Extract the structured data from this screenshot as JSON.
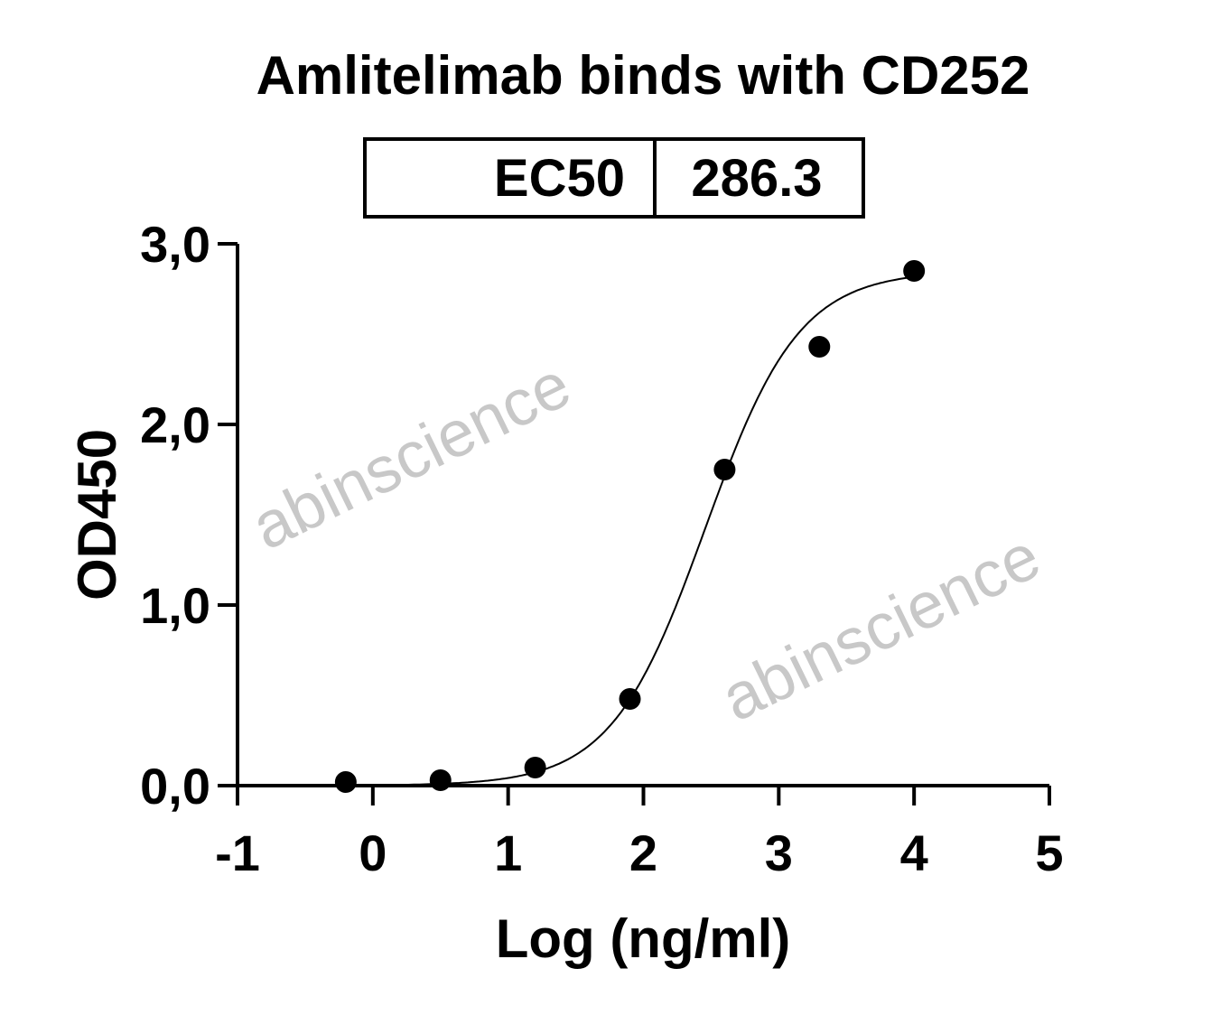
{
  "chart_data": {
    "type": "scatter",
    "title": "Amlitelimab binds with CD252",
    "xlabel": "Log (ng/ml)",
    "ylabel": "OD450",
    "xlim": [
      -1,
      5
    ],
    "ylim": [
      0,
      3
    ],
    "x_ticks": [
      "-1",
      "0",
      "1",
      "2",
      "3",
      "4",
      "5"
    ],
    "y_ticks": [
      "0,0",
      "1,0",
      "2,0",
      "3,0"
    ],
    "grid": false,
    "legend": null,
    "ec50_table": {
      "label": "EC50",
      "value": "286.3"
    },
    "points": [
      {
        "x": -0.2,
        "y": 0.02
      },
      {
        "x": 0.5,
        "y": 0.03
      },
      {
        "x": 1.2,
        "y": 0.1
      },
      {
        "x": 1.9,
        "y": 0.48
      },
      {
        "x": 2.6,
        "y": 1.75
      },
      {
        "x": 3.3,
        "y": 2.43
      },
      {
        "x": 4.0,
        "y": 2.85
      }
    ],
    "fit": {
      "model": "4PL",
      "bottom": 0,
      "top": 2.85,
      "log_ec50": 2.457,
      "hill": 1.25,
      "x_range": [
        -0.2,
        4.0
      ]
    },
    "colors": {
      "points": "#000000",
      "curve": "#000000",
      "watermark": "#c8c8c8"
    }
  },
  "watermark": "abinscience"
}
